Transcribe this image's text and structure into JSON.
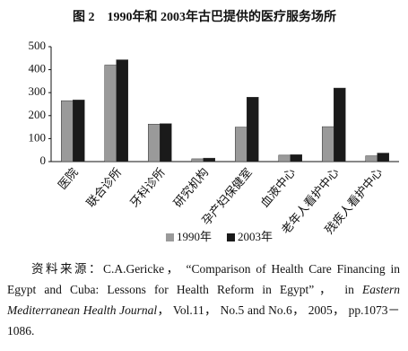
{
  "chart_data": {
    "type": "bar",
    "title": "图 2　1990年和 2003年古巴提供的医疗服务场所",
    "categories": [
      "医院",
      "联合诊所",
      "牙科诊所",
      "研究机构",
      "孕产妇保健室",
      "血液中心",
      "老年人看护中心",
      "残疾人看护中心"
    ],
    "series": [
      {
        "name": "1990年",
        "color": "#9a9a9a",
        "values": [
          265,
          420,
          163,
          12,
          150,
          28,
          152,
          25
        ]
      },
      {
        "name": "2003年",
        "color": "#1a1a1a",
        "values": [
          268,
          443,
          165,
          15,
          280,
          30,
          320,
          37
        ]
      }
    ],
    "ylim": [
      0,
      500
    ],
    "yticks": [
      0,
      100,
      200,
      300,
      400,
      500
    ],
    "grid": false
  },
  "source": {
    "label": "资料来源：",
    "before": "C.A.Gericke， “Comparison of Health Care Financing in Egypt and Cuba: Lessons for Health Reform in Egypt”， in ",
    "journal": "Eastern Mediterranean Health Journal",
    "after": "， Vol.11， No.5 and No.6， 2005， pp.1073－1086."
  }
}
